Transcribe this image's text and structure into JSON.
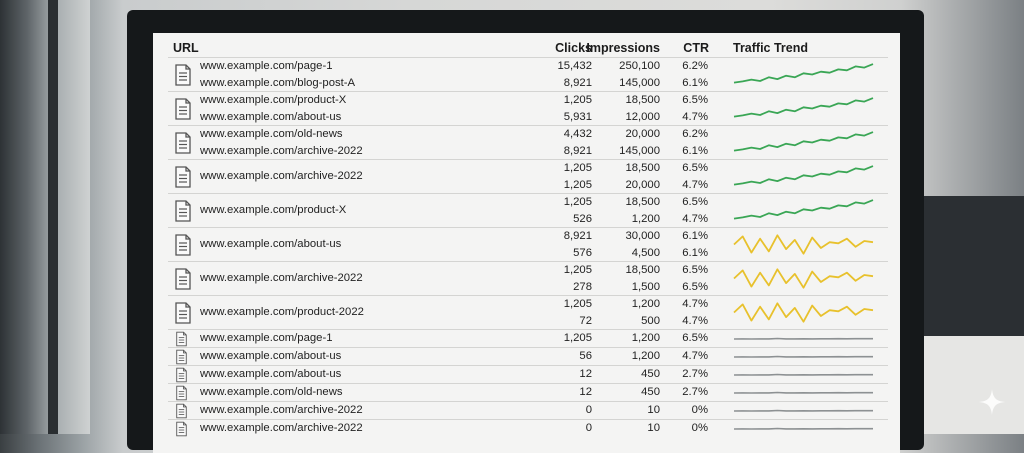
{
  "table": {
    "headers": {
      "url": "URL",
      "clicks": "Clicks",
      "impressions": "Impressions",
      "ctr": "CTR",
      "trend": "Traffic Trend"
    },
    "groups": [
      {
        "trend": "green",
        "height": 33,
        "rows": [
          {
            "url": "www.example.com/page-1",
            "clicks": "15,432",
            "impressions": "250,100",
            "ctr": "6.2%"
          },
          {
            "url": "www.example.com/blog-post-A",
            "clicks": "8,921",
            "impressions": "145,000",
            "ctr": "6.1%"
          }
        ]
      },
      {
        "trend": "green",
        "height": 33,
        "rows": [
          {
            "url": "www.example.com/product-X",
            "clicks": "1,205",
            "impressions": "18,500",
            "ctr": "6.5%"
          },
          {
            "url": "www.example.com/about-us",
            "clicks": "5,931",
            "impressions": "12,000",
            "ctr": "4.7%"
          }
        ]
      },
      {
        "trend": "green",
        "height": 33,
        "rows": [
          {
            "url": "www.example.com/old-news",
            "clicks": "4,432",
            "impressions": "20,000",
            "ctr": "6.2%"
          },
          {
            "url": "www.example.com/archive-2022",
            "clicks": "8,921",
            "impressions": "145,000",
            "ctr": "6.1%"
          }
        ]
      },
      {
        "trend": "green",
        "height": 33,
        "url": "www.example.com/archive-2022",
        "rows": [
          {
            "clicks": "1,205",
            "impressions": "18,500",
            "ctr": "6.5%"
          },
          {
            "clicks": "1,205",
            "impressions": "20,000",
            "ctr": "4.7%"
          }
        ]
      },
      {
        "trend": "green",
        "height": 33,
        "url": "www.example.com/product-X",
        "rows": [
          {
            "clicks": "1,205",
            "impressions": "18,500",
            "ctr": "6.5%"
          },
          {
            "clicks": "526",
            "impressions": "1,200",
            "ctr": "4.7%"
          }
        ]
      },
      {
        "trend": "yellow",
        "height": 33,
        "url": "www.example.com/about-us",
        "rows": [
          {
            "clicks": "8,921",
            "impressions": "30,000",
            "ctr": "6.1%"
          },
          {
            "clicks": "576",
            "impressions": "4,500",
            "ctr": "6.1%"
          }
        ]
      },
      {
        "trend": "yellow",
        "height": 33,
        "url": "www.example.com/archive-2022",
        "rows": [
          {
            "clicks": "1,205",
            "impressions": "18,500",
            "ctr": "6.5%"
          },
          {
            "clicks": "278",
            "impressions": "1,500",
            "ctr": "6.5%"
          }
        ]
      },
      {
        "trend": "yellow",
        "height": 33,
        "url": "www.example.com/product-2022",
        "rows": [
          {
            "clicks": "1,205",
            "impressions": "1,200",
            "ctr": "4.7%"
          },
          {
            "clicks": "72",
            "impressions": "500",
            "ctr": "4.7%"
          }
        ]
      },
      {
        "trend": "gray",
        "height": 17,
        "rows": [
          {
            "url": "www.example.com/page-1",
            "clicks": "1,205",
            "impressions": "1,200",
            "ctr": "6.5%"
          }
        ]
      },
      {
        "trend": "gray",
        "height": 17,
        "rows": [
          {
            "url": "www.example.com/about-us",
            "clicks": "56",
            "impressions": "1,200",
            "ctr": "4.7%"
          }
        ]
      },
      {
        "trend": "gray",
        "height": 17,
        "rows": [
          {
            "url": "www.example.com/about-us",
            "clicks": "12",
            "impressions": "450",
            "ctr": "2.7%"
          }
        ]
      },
      {
        "trend": "gray",
        "height": 17,
        "rows": [
          {
            "url": "www.example.com/old-news",
            "clicks": "12",
            "impressions": "450",
            "ctr": "2.7%"
          }
        ]
      },
      {
        "trend": "gray",
        "height": 17,
        "rows": [
          {
            "url": "www.example.com/archive-2022",
            "clicks": "0",
            "impressions": "10",
            "ctr": "0%"
          }
        ]
      },
      {
        "trend": "gray",
        "height": 17,
        "rows": [
          {
            "url": "www.example.com/archive-2022",
            "clicks": "0",
            "impressions": "10",
            "ctr": "0%"
          }
        ]
      }
    ]
  },
  "trend_colors": {
    "green": "#3aa655",
    "yellow": "#e8c12c",
    "gray": "#8d9193"
  },
  "icons": {
    "row": "document-icon",
    "assistant": "sparkle-icon"
  }
}
